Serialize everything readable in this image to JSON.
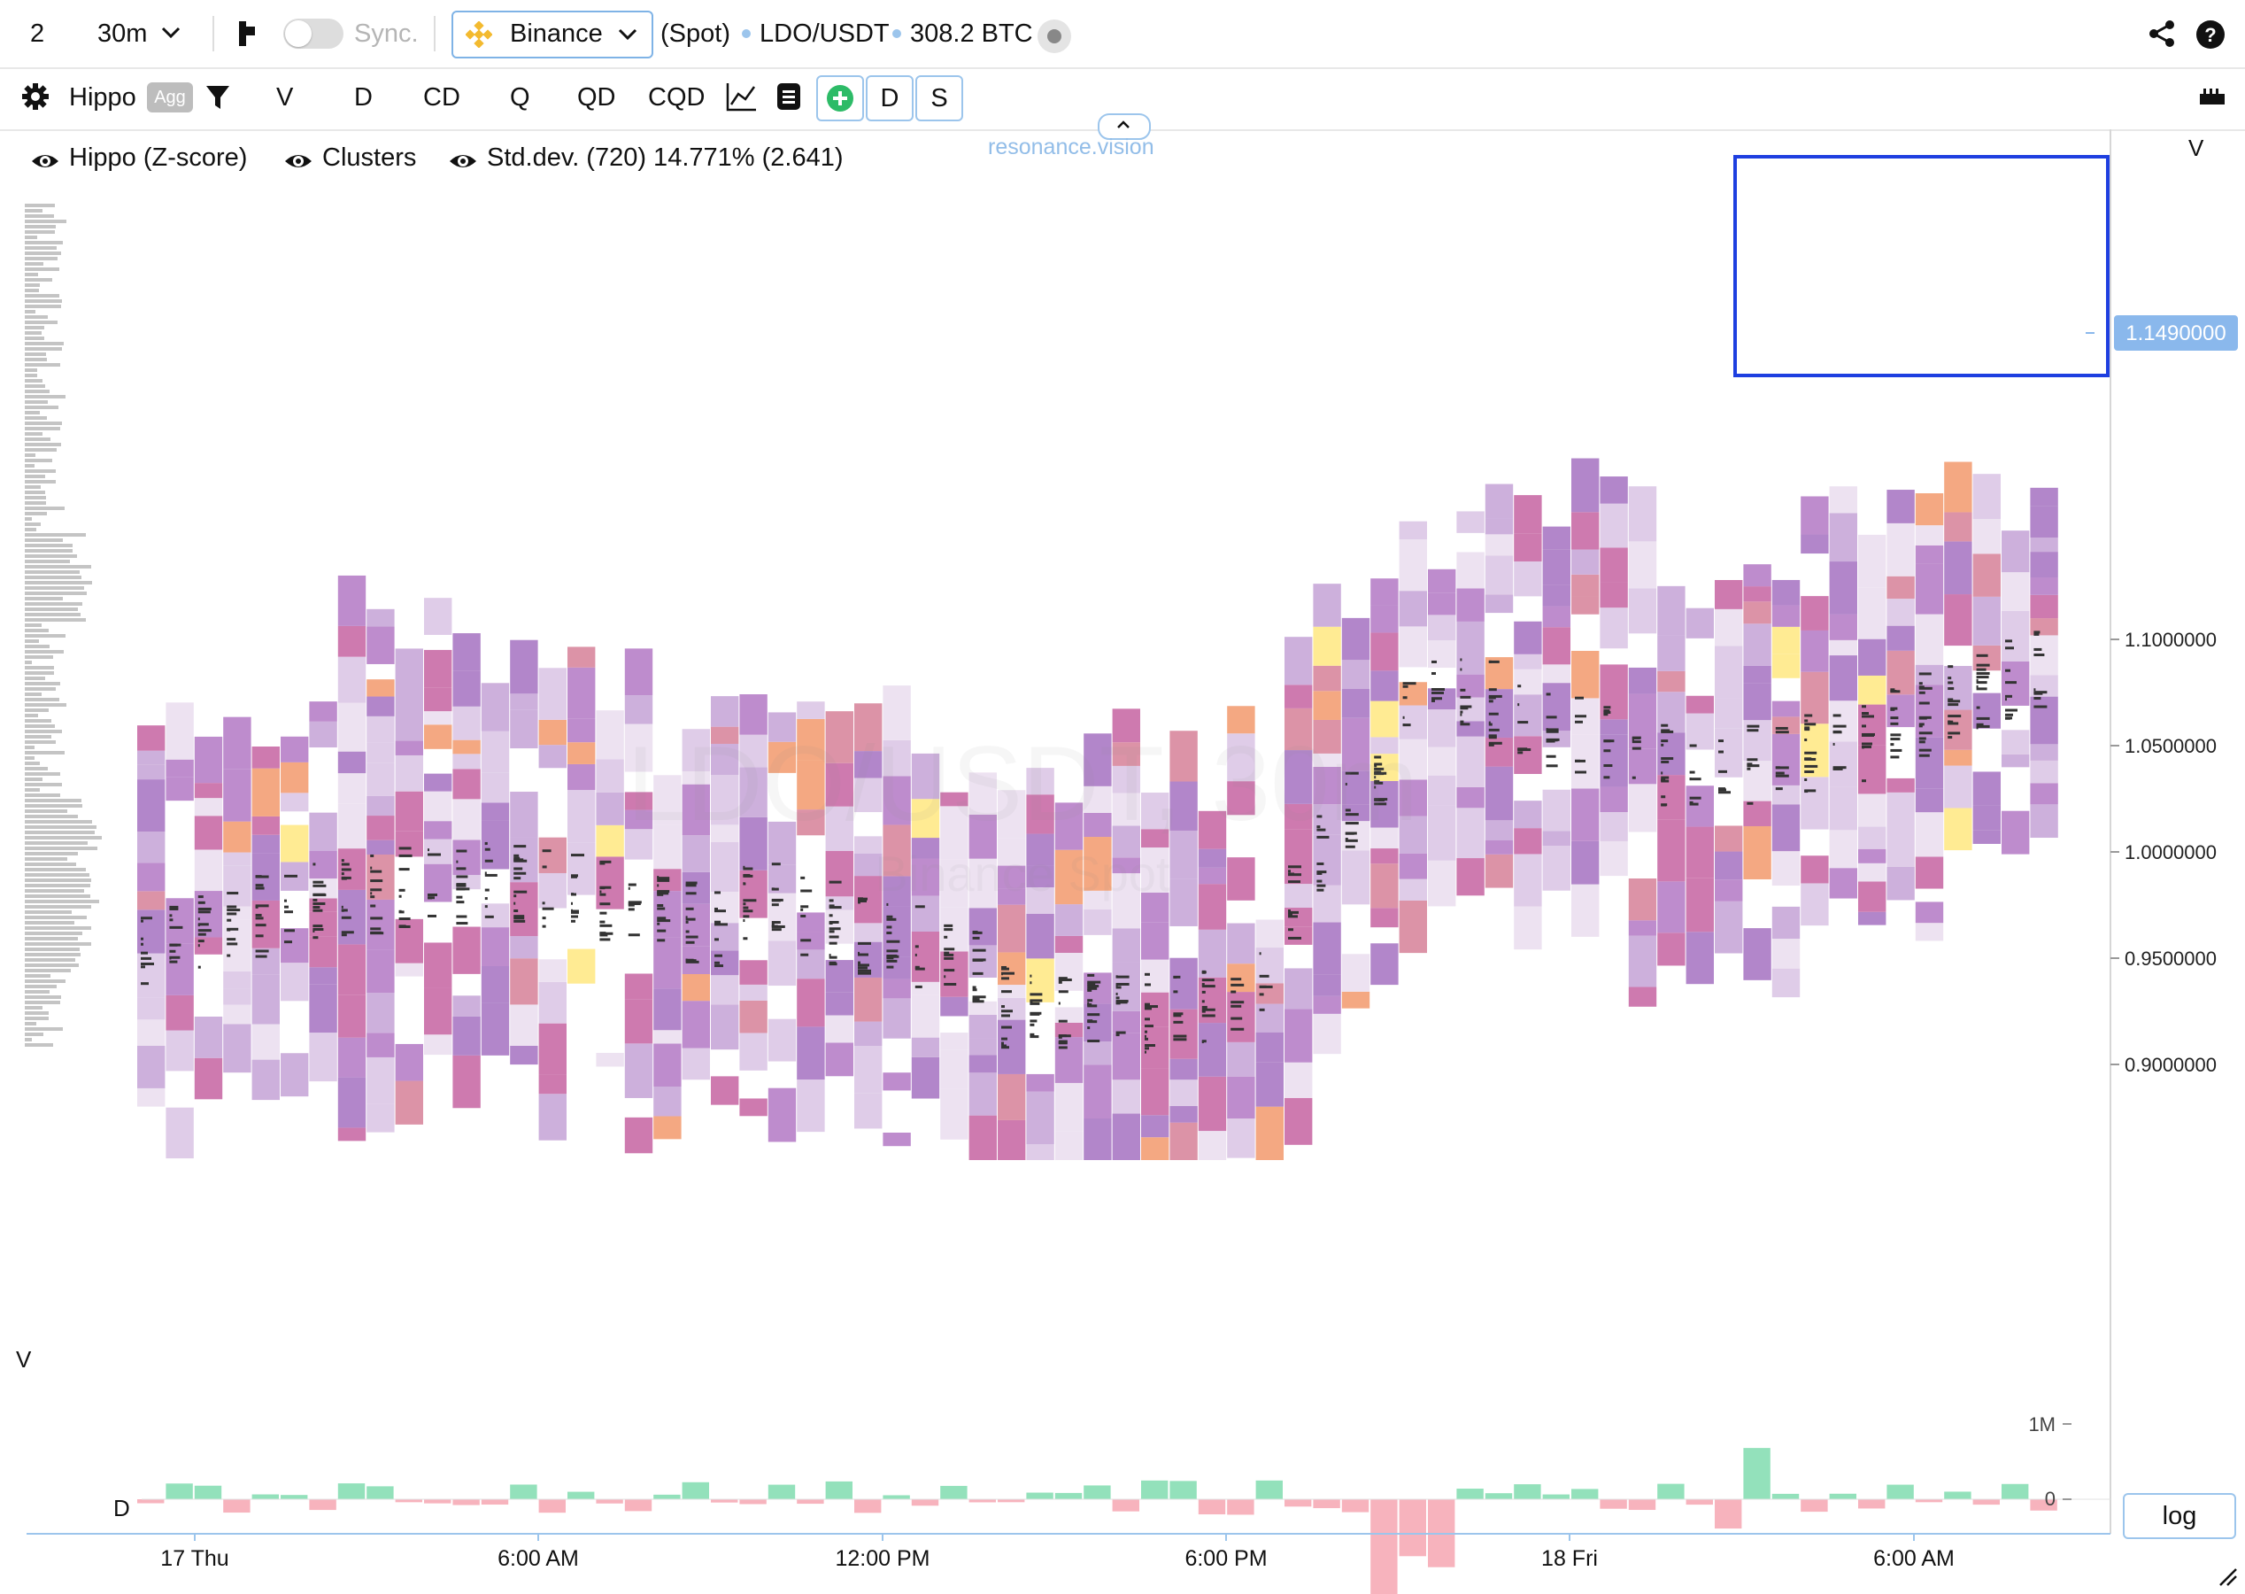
{
  "topbar": {
    "layout_count": "2",
    "interval": "30m",
    "sync_label": "Sync.",
    "exchange": "Binance",
    "market": "(Spot)",
    "pair": "LDO/USDT",
    "volume": "308.2 BTC"
  },
  "toolbar": {
    "indicator": "Hippo",
    "agg_badge": "Agg",
    "modes": [
      "V",
      "D",
      "CD",
      "Q",
      "QD",
      "CQD"
    ],
    "btn_d": "D",
    "btn_s": "S"
  },
  "legend": {
    "item1": "Hippo (Z-score)",
    "item2": "Clusters",
    "item3": "Std.dev. (720) 14.771% (2.641)"
  },
  "watermark": {
    "brand": "resonance.vision",
    "symbol": "LDO/USDT, 30m",
    "exchange": "Binance Spot"
  },
  "chart_data": {
    "type": "heatmap",
    "price_axis": {
      "ticks": [
        "1.1000000",
        "1.0500000",
        "1.0000000",
        "0.9500000",
        "0.9000000"
      ],
      "current_price": "1.1490000",
      "top_label": "V"
    },
    "time_axis": {
      "ticks": [
        "17 Thu",
        "6:00 AM",
        "12:00 PM",
        "6:00 PM",
        "18 Fri",
        "6:00 AM"
      ]
    },
    "volume_pane": {
      "label": "V",
      "sub_label": "D",
      "ticks": [
        "1M",
        "0"
      ],
      "scale_button": "log",
      "buy_color": "#93e1bb",
      "sell_color": "#f7b3bd"
    },
    "colors": {
      "high": "#ffe98a",
      "warm": "#f3a177",
      "mid": "#ca6fa8",
      "cool": "#ab7cc6",
      "low": "#ecdff0",
      "selection": "#1e3fe0",
      "price_badge": "#8ab8ec"
    }
  }
}
